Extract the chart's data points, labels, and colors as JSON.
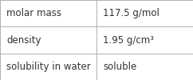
{
  "rows": [
    {
      "label": "molar mass",
      "value": "117.5 g/mol"
    },
    {
      "label": "density",
      "value": "1.95 g/cm³"
    },
    {
      "label": "solubility in water",
      "value": "soluble"
    }
  ],
  "col_split": 0.5,
  "background_color": "#ffffff",
  "border_color": "#b0b0b0",
  "text_color": "#333333",
  "font_size": 8.5,
  "fig_width": 2.42,
  "fig_height": 1.0,
  "dpi": 100
}
